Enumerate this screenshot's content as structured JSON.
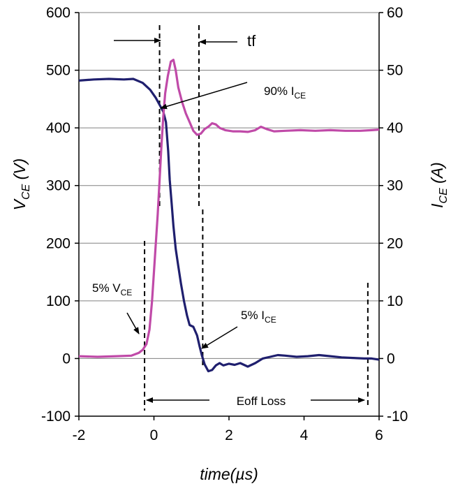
{
  "chart_data": {
    "type": "line",
    "title": "",
    "xlabel": "time(µs)",
    "ylabel_left": {
      "main": "V",
      "sub": "CE",
      "unit": " (V)"
    },
    "ylabel_right": {
      "main": "I",
      "sub": "CE",
      "unit": " (A)"
    },
    "xlim": [
      -2,
      6
    ],
    "ylim_left": [
      -100,
      600
    ],
    "ylim_right": [
      -10,
      60
    ],
    "xticks": [
      "-2",
      "0",
      "2",
      "4",
      "6"
    ],
    "yticks_left": [
      "600",
      "500",
      "400",
      "300",
      "200",
      "100",
      "0",
      "-100"
    ],
    "yticks_right": [
      "60",
      "50",
      "40",
      "30",
      "20",
      "10",
      "0",
      "-10"
    ],
    "grid": "horizontal",
    "series": [
      {
        "axis": "left",
        "color": "#1f1f6e",
        "points": [
          [
            -2.0,
            482
          ],
          [
            -1.6,
            484
          ],
          [
            -1.2,
            485
          ],
          [
            -0.8,
            484
          ],
          [
            -0.55,
            485
          ],
          [
            -0.3,
            478
          ],
          [
            -0.1,
            466
          ],
          [
            0.05,
            452
          ],
          [
            0.15,
            440
          ],
          [
            0.25,
            428
          ],
          [
            0.32,
            410
          ],
          [
            0.38,
            360
          ],
          [
            0.42,
            310
          ],
          [
            0.47,
            270
          ],
          [
            0.52,
            230
          ],
          [
            0.58,
            190
          ],
          [
            0.65,
            160
          ],
          [
            0.72,
            130
          ],
          [
            0.8,
            100
          ],
          [
            0.88,
            75
          ],
          [
            0.95,
            58
          ],
          [
            1.05,
            55
          ],
          [
            1.15,
            40
          ],
          [
            1.22,
            20
          ],
          [
            1.28,
            5
          ],
          [
            1.35,
            -10
          ],
          [
            1.45,
            -22
          ],
          [
            1.55,
            -20
          ],
          [
            1.65,
            -12
          ],
          [
            1.75,
            -8
          ],
          [
            1.85,
            -12
          ],
          [
            2.0,
            -9
          ],
          [
            2.15,
            -11
          ],
          [
            2.3,
            -8
          ],
          [
            2.5,
            -14
          ],
          [
            2.7,
            -8
          ],
          [
            2.9,
            0
          ],
          [
            3.1,
            3
          ],
          [
            3.3,
            6
          ],
          [
            3.5,
            5
          ],
          [
            3.8,
            3
          ],
          [
            4.1,
            4
          ],
          [
            4.4,
            6
          ],
          [
            4.7,
            4
          ],
          [
            5.0,
            2
          ],
          [
            5.3,
            1
          ],
          [
            5.6,
            0
          ],
          [
            5.8,
            0
          ],
          [
            6.0,
            -2
          ]
        ]
      },
      {
        "axis": "right",
        "color": "#c04aa8",
        "points": [
          [
            -2.0,
            0.4
          ],
          [
            -1.5,
            0.3
          ],
          [
            -1.0,
            0.4
          ],
          [
            -0.6,
            0.5
          ],
          [
            -0.4,
            1.0
          ],
          [
            -0.3,
            1.5
          ],
          [
            -0.2,
            2.5
          ],
          [
            -0.12,
            5
          ],
          [
            -0.05,
            10
          ],
          [
            0.0,
            15
          ],
          [
            0.05,
            20
          ],
          [
            0.1,
            25
          ],
          [
            0.15,
            31
          ],
          [
            0.2,
            37
          ],
          [
            0.25,
            42
          ],
          [
            0.3,
            46
          ],
          [
            0.37,
            49
          ],
          [
            0.45,
            51.5
          ],
          [
            0.52,
            51.8
          ],
          [
            0.58,
            50
          ],
          [
            0.65,
            47
          ],
          [
            0.75,
            44.5
          ],
          [
            0.85,
            42.5
          ],
          [
            0.95,
            41
          ],
          [
            1.05,
            39.5
          ],
          [
            1.15,
            38.8
          ],
          [
            1.25,
            39.0
          ],
          [
            1.35,
            39.8
          ],
          [
            1.45,
            40.2
          ],
          [
            1.55,
            40.8
          ],
          [
            1.65,
            40.6
          ],
          [
            1.75,
            40.0
          ],
          [
            1.9,
            39.6
          ],
          [
            2.1,
            39.4
          ],
          [
            2.3,
            39.4
          ],
          [
            2.5,
            39.3
          ],
          [
            2.7,
            39.6
          ],
          [
            2.85,
            40.2
          ],
          [
            3.0,
            39.8
          ],
          [
            3.2,
            39.4
          ],
          [
            3.5,
            39.5
          ],
          [
            3.9,
            39.6
          ],
          [
            4.3,
            39.5
          ],
          [
            4.7,
            39.6
          ],
          [
            5.1,
            39.5
          ],
          [
            5.5,
            39.5
          ],
          [
            5.8,
            39.6
          ],
          [
            6.0,
            39.7
          ]
        ]
      }
    ],
    "markers_x": [
      -0.25,
      0.15,
      1.2,
      1.3,
      5.7
    ],
    "annotations": {
      "tf": "tf",
      "pct90": {
        "pre": "90% I",
        "sub": "CE"
      },
      "pct5v": {
        "pre": "5% V",
        "sub": "CE"
      },
      "pct5i": {
        "pre": "5% I",
        "sub": "CE"
      },
      "eoff": "Eoff Loss"
    }
  },
  "colors": {
    "vce": "#1f1f6e",
    "ice": "#c04aa8",
    "grid": "#808080"
  }
}
